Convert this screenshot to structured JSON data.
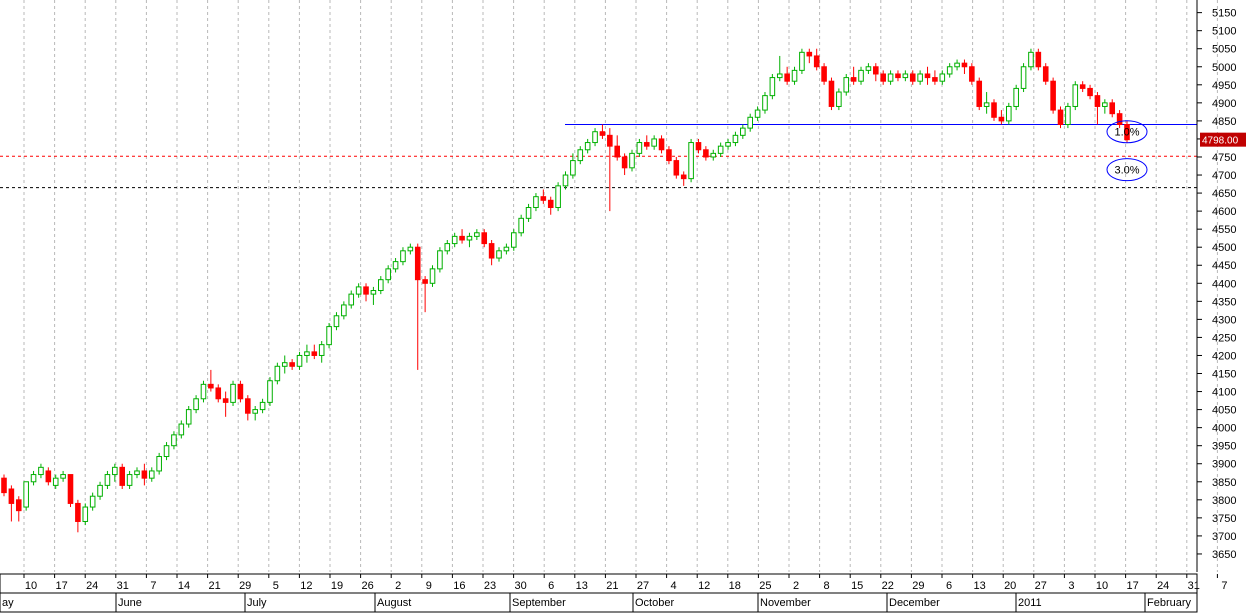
{
  "chart_data": {
    "type": "candlestick",
    "y_ticks": [
      3650,
      3700,
      3750,
      3800,
      3850,
      3900,
      3950,
      4000,
      4050,
      4100,
      4150,
      4200,
      4250,
      4300,
      4350,
      4400,
      4450,
      4500,
      4550,
      4600,
      4650,
      4700,
      4750,
      4800,
      4850,
      4900,
      4950,
      5000,
      5050,
      5100,
      5150
    ],
    "ylim": [
      3600,
      5185
    ],
    "current_price": "4798.00",
    "horizontal_lines": [
      {
        "value": 4840,
        "color": "#0000ff",
        "style": "solid"
      },
      {
        "value": 4752,
        "color": "#ff0000",
        "style": "dashed"
      },
      {
        "value": 4665,
        "color": "#000000",
        "style": "dashed"
      }
    ],
    "annotations": [
      {
        "label": "1.0%",
        "value": 4820
      },
      {
        "label": "3.0%",
        "value": 4715
      }
    ],
    "date_labels": [
      "10",
      "17",
      "24",
      "31",
      "7",
      "14",
      "21",
      "29",
      "5",
      "12",
      "19",
      "26",
      "2",
      "9",
      "16",
      "23",
      "30",
      "6",
      "13",
      "21",
      "27",
      "4",
      "12",
      "18",
      "25",
      "2",
      "8",
      "15",
      "22",
      "29",
      "6",
      "13",
      "20",
      "27",
      "3",
      "10",
      "17",
      "24",
      "31",
      "7"
    ],
    "month_labels": [
      "ay",
      "June",
      "July",
      "August",
      "September",
      "October",
      "November",
      "December",
      "2011",
      "February"
    ],
    "series": [
      {
        "name": "",
        "ohlc": [
          [
            3860,
            3870,
            3810,
            3820
          ],
          [
            3830,
            3840,
            3740,
            3790
          ],
          [
            3800,
            3810,
            3740,
            3770
          ],
          [
            3780,
            3850,
            3770,
            3850
          ],
          [
            3850,
            3880,
            3840,
            3870
          ],
          [
            3870,
            3900,
            3860,
            3890
          ],
          [
            3880,
            3890,
            3840,
            3850
          ],
          [
            3840,
            3870,
            3830,
            3860
          ],
          [
            3860,
            3880,
            3850,
            3870
          ],
          [
            3870,
            3870,
            3780,
            3790
          ],
          [
            3790,
            3800,
            3710,
            3740
          ],
          [
            3740,
            3790,
            3730,
            3780
          ],
          [
            3780,
            3820,
            3770,
            3810
          ],
          [
            3810,
            3850,
            3800,
            3840
          ],
          [
            3840,
            3880,
            3830,
            3870
          ],
          [
            3870,
            3900,
            3850,
            3890
          ],
          [
            3890,
            3900,
            3830,
            3840
          ],
          [
            3840,
            3880,
            3830,
            3870
          ],
          [
            3870,
            3890,
            3860,
            3880
          ],
          [
            3880,
            3900,
            3840,
            3860
          ],
          [
            3860,
            3890,
            3850,
            3880
          ],
          [
            3880,
            3930,
            3870,
            3920
          ],
          [
            3920,
            3960,
            3910,
            3950
          ],
          [
            3950,
            3990,
            3940,
            3980
          ],
          [
            3980,
            4020,
            3970,
            4010
          ],
          [
            4010,
            4060,
            4000,
            4050
          ],
          [
            4050,
            4090,
            4040,
            4080
          ],
          [
            4080,
            4130,
            4070,
            4120
          ],
          [
            4120,
            4160,
            4100,
            4110
          ],
          [
            4110,
            4120,
            4070,
            4080
          ],
          [
            4080,
            4100,
            4030,
            4070
          ],
          [
            4070,
            4130,
            4060,
            4120
          ],
          [
            4120,
            4130,
            4070,
            4080
          ],
          [
            4080,
            4090,
            4020,
            4040
          ],
          [
            4040,
            4060,
            4020,
            4050
          ],
          [
            4050,
            4080,
            4040,
            4070
          ],
          [
            4070,
            4140,
            4060,
            4130
          ],
          [
            4130,
            4180,
            4120,
            4170
          ],
          [
            4170,
            4200,
            4150,
            4180
          ],
          [
            4180,
            4190,
            4160,
            4170
          ],
          [
            4170,
            4210,
            4160,
            4200
          ],
          [
            4200,
            4230,
            4180,
            4210
          ],
          [
            4210,
            4230,
            4190,
            4200
          ],
          [
            4200,
            4240,
            4180,
            4230
          ],
          [
            4230,
            4290,
            4220,
            4280
          ],
          [
            4280,
            4320,
            4270,
            4310
          ],
          [
            4310,
            4350,
            4300,
            4340
          ],
          [
            4340,
            4380,
            4330,
            4370
          ],
          [
            4370,
            4400,
            4360,
            4390
          ],
          [
            4390,
            4400,
            4350,
            4370
          ],
          [
            4370,
            4390,
            4340,
            4380
          ],
          [
            4380,
            4420,
            4370,
            4410
          ],
          [
            4410,
            4450,
            4400,
            4440
          ],
          [
            4440,
            4470,
            4430,
            4460
          ],
          [
            4460,
            4500,
            4450,
            4490
          ],
          [
            4490,
            4510,
            4480,
            4500
          ],
          [
            4500,
            4510,
            4160,
            4410
          ],
          [
            4410,
            4420,
            4320,
            4400
          ],
          [
            4400,
            4450,
            4390,
            4440
          ],
          [
            4440,
            4500,
            4430,
            4490
          ],
          [
            4490,
            4520,
            4480,
            4510
          ],
          [
            4510,
            4540,
            4500,
            4530
          ],
          [
            4530,
            4550,
            4510,
            4520
          ],
          [
            4520,
            4540,
            4500,
            4530
          ],
          [
            4530,
            4550,
            4520,
            4540
          ],
          [
            4540,
            4550,
            4500,
            4510
          ],
          [
            4510,
            4520,
            4450,
            4470
          ],
          [
            4470,
            4500,
            4460,
            4490
          ],
          [
            4490,
            4510,
            4480,
            4500
          ],
          [
            4500,
            4550,
            4490,
            4540
          ],
          [
            4540,
            4590,
            4530,
            4580
          ],
          [
            4580,
            4620,
            4570,
            4610
          ],
          [
            4610,
            4650,
            4600,
            4640
          ],
          [
            4640,
            4660,
            4620,
            4630
          ],
          [
            4630,
            4640,
            4590,
            4610
          ],
          [
            4610,
            4680,
            4600,
            4670
          ],
          [
            4670,
            4710,
            4660,
            4700
          ],
          [
            4700,
            4760,
            4690,
            4740
          ],
          [
            4740,
            4780,
            4730,
            4770
          ],
          [
            4770,
            4800,
            4760,
            4790
          ],
          [
            4790,
            4830,
            4780,
            4820
          ],
          [
            4820,
            4840,
            4800,
            4810
          ],
          [
            4810,
            4830,
            4600,
            4780
          ],
          [
            4780,
            4810,
            4740,
            4750
          ],
          [
            4750,
            4760,
            4700,
            4720
          ],
          [
            4720,
            4770,
            4710,
            4760
          ],
          [
            4760,
            4800,
            4750,
            4790
          ],
          [
            4790,
            4810,
            4770,
            4780
          ],
          [
            4780,
            4810,
            4770,
            4800
          ],
          [
            4800,
            4810,
            4760,
            4770
          ],
          [
            4770,
            4780,
            4730,
            4740
          ],
          [
            4740,
            4750,
            4690,
            4700
          ],
          [
            4700,
            4710,
            4670,
            4690
          ],
          [
            4690,
            4800,
            4680,
            4790
          ],
          [
            4790,
            4800,
            4760,
            4770
          ],
          [
            4770,
            4780,
            4740,
            4750
          ],
          [
            4750,
            4770,
            4740,
            4760
          ],
          [
            4760,
            4790,
            4750,
            4780
          ],
          [
            4780,
            4800,
            4770,
            4790
          ],
          [
            4790,
            4820,
            4780,
            4810
          ],
          [
            4810,
            4840,
            4800,
            4830
          ],
          [
            4830,
            4870,
            4820,
            4860
          ],
          [
            4860,
            4890,
            4850,
            4880
          ],
          [
            4880,
            4930,
            4870,
            4920
          ],
          [
            4920,
            4980,
            4910,
            4970
          ],
          [
            4970,
            5030,
            4960,
            4980
          ],
          [
            4980,
            5000,
            4950,
            4960
          ],
          [
            4960,
            5000,
            4950,
            4990
          ],
          [
            4990,
            5050,
            4980,
            5040
          ],
          [
            5040,
            5050,
            5010,
            5030
          ],
          [
            5030,
            5050,
            4990,
            5000
          ],
          [
            5000,
            5010,
            4950,
            4960
          ],
          [
            4960,
            4970,
            4880,
            4890
          ],
          [
            4890,
            4940,
            4880,
            4930
          ],
          [
            4930,
            4980,
            4920,
            4970
          ],
          [
            4970,
            5000,
            4950,
            4960
          ],
          [
            4960,
            5000,
            4950,
            4990
          ],
          [
            4990,
            5010,
            4980,
            5000
          ],
          [
            5000,
            5010,
            4960,
            4980
          ],
          [
            4980,
            4990,
            4950,
            4960
          ],
          [
            4960,
            4990,
            4950,
            4980
          ],
          [
            4980,
            4990,
            4960,
            4970
          ],
          [
            4970,
            4990,
            4960,
            4980
          ],
          [
            4980,
            4990,
            4950,
            4960
          ],
          [
            4960,
            4990,
            4950,
            4980
          ],
          [
            4980,
            5000,
            4950,
            4970
          ],
          [
            4970,
            4990,
            4950,
            4960
          ],
          [
            4960,
            4990,
            4950,
            4980
          ],
          [
            4980,
            5010,
            4970,
            5000
          ],
          [
            5000,
            5020,
            4990,
            5010
          ],
          [
            5010,
            5020,
            4980,
            5000
          ],
          [
            5000,
            5010,
            4950,
            4960
          ],
          [
            4960,
            4970,
            4880,
            4890
          ],
          [
            4890,
            4930,
            4870,
            4900
          ],
          [
            4900,
            4910,
            4850,
            4860
          ],
          [
            4860,
            4880,
            4840,
            4850
          ],
          [
            4850,
            4900,
            4840,
            4890
          ],
          [
            4890,
            4950,
            4880,
            4940
          ],
          [
            4940,
            5010,
            4930,
            5000
          ],
          [
            5000,
            5050,
            4990,
            5040
          ],
          [
            5040,
            5050,
            4990,
            5000
          ],
          [
            5000,
            5010,
            4950,
            4960
          ],
          [
            4960,
            4970,
            4870,
            4880
          ],
          [
            4880,
            4890,
            4830,
            4840
          ],
          [
            4840,
            4900,
            4830,
            4890
          ],
          [
            4890,
            4960,
            4880,
            4950
          ],
          [
            4950,
            4960,
            4930,
            4940
          ],
          [
            4940,
            4950,
            4910,
            4920
          ],
          [
            4920,
            4930,
            4840,
            4890
          ],
          [
            4890,
            4910,
            4870,
            4900
          ],
          [
            4900,
            4910,
            4860,
            4870
          ],
          [
            4870,
            4880,
            4830,
            4840
          ],
          [
            4840,
            4850,
            4790,
            4798
          ]
        ]
      }
    ]
  }
}
